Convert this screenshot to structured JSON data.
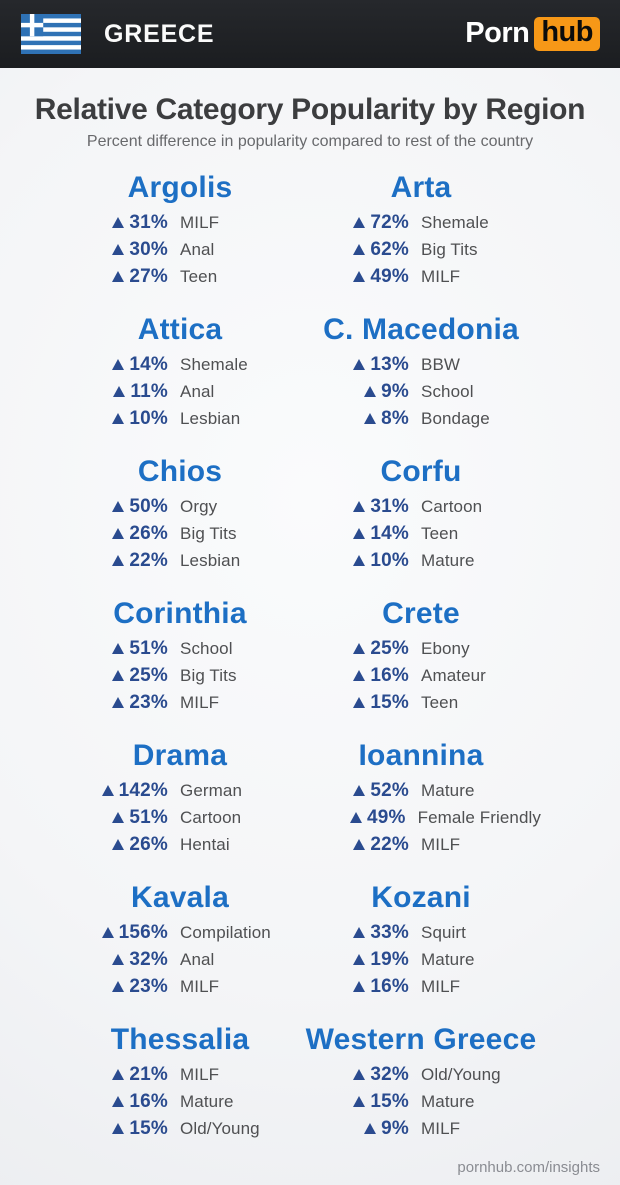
{
  "header": {
    "country_label": "GREECE",
    "flag_icon": "greece-flag-icon",
    "logo": {
      "part1": "Porn",
      "part2": "hub"
    }
  },
  "footer": {
    "link": "pornhub.com/insights"
  },
  "colors": {
    "header_bg": "#1d1f23",
    "logo_orange": "#f79817",
    "region_title_blue": "#1d6fc4",
    "percent_navy": "#2a4b8f",
    "category_gray": "#4f5052",
    "flag_blue": "#2f72b5"
  },
  "chart_data": {
    "type": "table",
    "title": "Relative Category Popularity by Region",
    "subtitle": "Percent difference in popularity compared to rest of the country",
    "unit": "%",
    "direction": "increase",
    "layout": "2-column grid, 7 rows, 3 entries per region",
    "regions": [
      {
        "name": "Argolis",
        "entries": [
          {
            "pct": 31,
            "category": "MILF"
          },
          {
            "pct": 30,
            "category": "Anal"
          },
          {
            "pct": 27,
            "category": "Teen"
          }
        ]
      },
      {
        "name": "Arta",
        "entries": [
          {
            "pct": 72,
            "category": "Shemale"
          },
          {
            "pct": 62,
            "category": "Big Tits"
          },
          {
            "pct": 49,
            "category": "MILF"
          }
        ]
      },
      {
        "name": "Attica",
        "entries": [
          {
            "pct": 14,
            "category": "Shemale"
          },
          {
            "pct": 11,
            "category": "Anal"
          },
          {
            "pct": 10,
            "category": "Lesbian"
          }
        ]
      },
      {
        "name": "C. Macedonia",
        "entries": [
          {
            "pct": 13,
            "category": "BBW"
          },
          {
            "pct": 9,
            "category": "School"
          },
          {
            "pct": 8,
            "category": "Bondage"
          }
        ]
      },
      {
        "name": "Chios",
        "entries": [
          {
            "pct": 50,
            "category": "Orgy"
          },
          {
            "pct": 26,
            "category": "Big Tits"
          },
          {
            "pct": 22,
            "category": "Lesbian"
          }
        ]
      },
      {
        "name": "Corfu",
        "entries": [
          {
            "pct": 31,
            "category": "Cartoon"
          },
          {
            "pct": 14,
            "category": "Teen"
          },
          {
            "pct": 10,
            "category": "Mature"
          }
        ]
      },
      {
        "name": "Corinthia",
        "entries": [
          {
            "pct": 51,
            "category": "School"
          },
          {
            "pct": 25,
            "category": "Big Tits"
          },
          {
            "pct": 23,
            "category": "MILF"
          }
        ]
      },
      {
        "name": "Crete",
        "entries": [
          {
            "pct": 25,
            "category": "Ebony"
          },
          {
            "pct": 16,
            "category": "Amateur"
          },
          {
            "pct": 15,
            "category": "Teen"
          }
        ]
      },
      {
        "name": "Drama",
        "entries": [
          {
            "pct": 142,
            "category": "German"
          },
          {
            "pct": 51,
            "category": "Cartoon"
          },
          {
            "pct": 26,
            "category": "Hentai"
          }
        ]
      },
      {
        "name": "Ioannina",
        "entries": [
          {
            "pct": 52,
            "category": "Mature"
          },
          {
            "pct": 49,
            "category": "Female Friendly"
          },
          {
            "pct": 22,
            "category": "MILF"
          }
        ]
      },
      {
        "name": "Kavala",
        "entries": [
          {
            "pct": 156,
            "category": "Compilation"
          },
          {
            "pct": 32,
            "category": "Anal"
          },
          {
            "pct": 23,
            "category": "MILF"
          }
        ]
      },
      {
        "name": "Kozani",
        "entries": [
          {
            "pct": 33,
            "category": "Squirt"
          },
          {
            "pct": 19,
            "category": "Mature"
          },
          {
            "pct": 16,
            "category": "MILF"
          }
        ]
      },
      {
        "name": "Thessalia",
        "entries": [
          {
            "pct": 21,
            "category": "MILF"
          },
          {
            "pct": 16,
            "category": "Mature"
          },
          {
            "pct": 15,
            "category": "Old/Young"
          }
        ]
      },
      {
        "name": "Western Greece",
        "entries": [
          {
            "pct": 32,
            "category": "Old/Young"
          },
          {
            "pct": 15,
            "category": "Mature"
          },
          {
            "pct": 9,
            "category": "MILF"
          }
        ]
      }
    ]
  }
}
